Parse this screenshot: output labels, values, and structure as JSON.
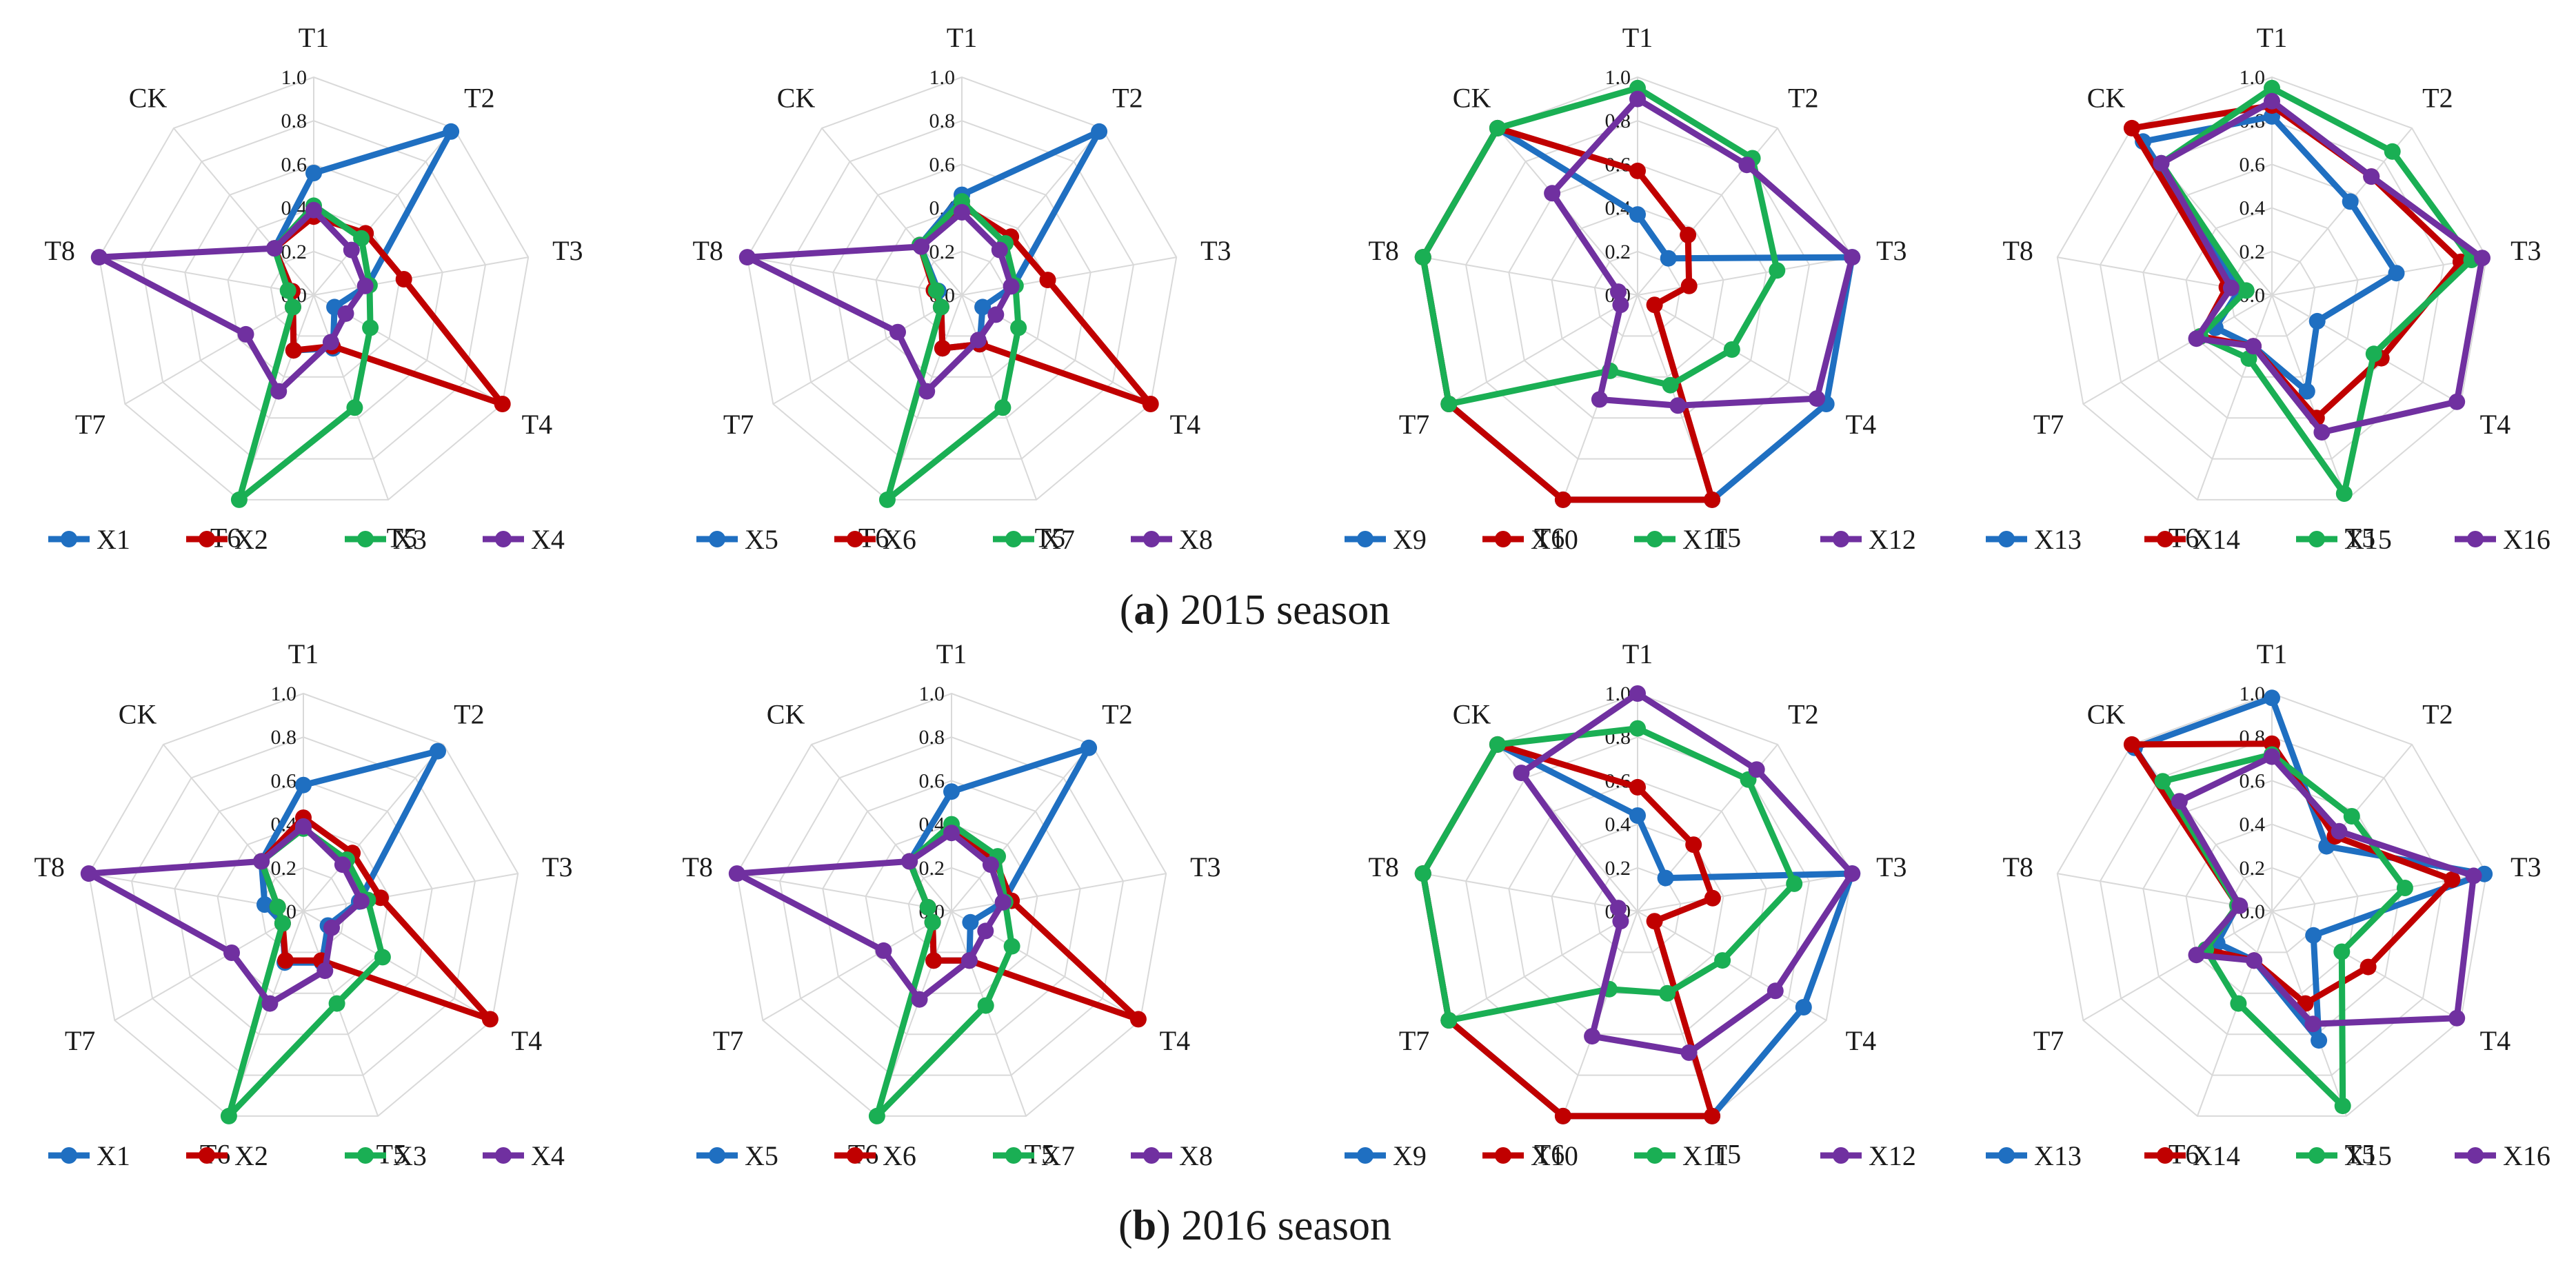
{
  "colors": {
    "s1": "#1f6fc1",
    "s2": "#c00000",
    "s3": "#1aaf54",
    "s4": "#7030a0"
  },
  "chart_data": [
    {
      "type": "radar",
      "axes": [
        "T1",
        "T2",
        "T3",
        "T4",
        "T5",
        "T6",
        "T7",
        "T8",
        "CK"
      ],
      "rlim": [
        0,
        1
      ],
      "ticks": [
        "0.0",
        "0.2",
        "0.4",
        "0.6",
        "0.8",
        "1.0"
      ],
      "series": [
        {
          "name": "X1",
          "values": [
            0.56,
            0.98,
            0.25,
            0.11,
            0.26,
            0.27,
            0.11,
            0.1,
            0.28
          ]
        },
        {
          "name": "X2",
          "values": [
            0.36,
            0.37,
            0.42,
            1.0,
            0.25,
            0.27,
            0.11,
            0.1,
            0.28
          ]
        },
        {
          "name": "X3",
          "values": [
            0.41,
            0.34,
            0.26,
            0.3,
            0.55,
            1.0,
            0.11,
            0.12,
            0.28
          ]
        },
        {
          "name": "X4",
          "values": [
            0.39,
            0.27,
            0.24,
            0.17,
            0.23,
            0.47,
            0.36,
            1.0,
            0.28
          ]
        }
      ]
    },
    {
      "type": "radar",
      "axes": [
        "T1",
        "T2",
        "T3",
        "T4",
        "T5",
        "T6",
        "T7",
        "T8",
        "CK"
      ],
      "rlim": [
        0,
        1
      ],
      "ticks": [
        "0.0",
        "0.2",
        "0.4",
        "0.6",
        "0.8",
        "1.0"
      ],
      "series": [
        {
          "name": "X5",
          "values": [
            0.46,
            0.98,
            0.24,
            0.11,
            0.24,
            0.26,
            0.11,
            0.11,
            0.3
          ]
        },
        {
          "name": "X6",
          "values": [
            0.41,
            0.35,
            0.4,
            1.0,
            0.24,
            0.26,
            0.11,
            0.13,
            0.3
          ]
        },
        {
          "name": "X7",
          "values": [
            0.43,
            0.31,
            0.25,
            0.3,
            0.55,
            1.0,
            0.11,
            0.12,
            0.3
          ]
        },
        {
          "name": "X8",
          "values": [
            0.38,
            0.27,
            0.23,
            0.18,
            0.22,
            0.47,
            0.34,
            1.0,
            0.29
          ]
        }
      ]
    },
    {
      "type": "radar",
      "axes": [
        "T1",
        "T2",
        "T3",
        "T4",
        "T5",
        "T6",
        "T7",
        "T8",
        "CK"
      ],
      "rlim": [
        0,
        1
      ],
      "ticks": [
        "0.0",
        "0.2",
        "0.4",
        "0.6",
        "0.8",
        "1.0"
      ],
      "series": [
        {
          "name": "X9",
          "values": [
            0.37,
            0.22,
            1.0,
            1.0,
            1.0,
            1.0,
            1.0,
            1.0,
            1.0
          ]
        },
        {
          "name": "X10",
          "values": [
            0.57,
            0.36,
            0.24,
            0.09,
            1.0,
            1.0,
            1.0,
            1.0,
            1.0
          ]
        },
        {
          "name": "X11",
          "values": [
            0.95,
            0.82,
            0.65,
            0.5,
            0.44,
            0.37,
            1.0,
            1.0,
            1.0
          ]
        },
        {
          "name": "X12",
          "values": [
            0.9,
            0.78,
            1.0,
            0.95,
            0.54,
            0.51,
            0.09,
            0.09,
            0.61
          ]
        }
      ]
    },
    {
      "type": "radar",
      "axes": [
        "T1",
        "T2",
        "T3",
        "T4",
        "T5",
        "T6",
        "T7",
        "T8",
        "CK"
      ],
      "rlim": [
        0,
        1
      ],
      "ticks": [
        "0.0",
        "0.2",
        "0.4",
        "0.6",
        "0.8",
        "1.0"
      ],
      "series": [
        {
          "name": "X13",
          "values": [
            0.82,
            0.56,
            0.58,
            0.24,
            0.47,
            0.25,
            0.3,
            0.15,
            0.92
          ]
        },
        {
          "name": "X14",
          "values": [
            0.87,
            0.71,
            0.88,
            0.58,
            0.6,
            0.25,
            0.38,
            0.21,
            1.0
          ]
        },
        {
          "name": "X15",
          "values": [
            0.95,
            0.86,
            0.93,
            0.54,
            0.97,
            0.31,
            0.38,
            0.12,
            0.79
          ]
        },
        {
          "name": "X16",
          "values": [
            0.89,
            0.71,
            0.98,
            0.98,
            0.67,
            0.25,
            0.4,
            0.19,
            0.79
          ]
        }
      ]
    },
    {
      "type": "radar",
      "axes": [
        "T1",
        "T2",
        "T3",
        "T4",
        "T5",
        "T6",
        "T7",
        "T8",
        "CK"
      ],
      "rlim": [
        0,
        1
      ],
      "ticks": [
        "0.0",
        "0.2",
        "0.4",
        "0.6",
        "0.8",
        "1.0"
      ],
      "series": [
        {
          "name": "X1",
          "values": [
            0.58,
            0.96,
            0.26,
            0.13,
            0.25,
            0.25,
            0.11,
            0.18,
            0.3
          ]
        },
        {
          "name": "X2",
          "values": [
            0.43,
            0.35,
            0.36,
            0.99,
            0.24,
            0.24,
            0.11,
            0.12,
            0.3
          ]
        },
        {
          "name": "X3",
          "values": [
            0.38,
            0.31,
            0.3,
            0.42,
            0.45,
            1.0,
            0.11,
            0.12,
            0.3
          ]
        },
        {
          "name": "X4",
          "values": [
            0.39,
            0.28,
            0.27,
            0.15,
            0.29,
            0.45,
            0.38,
            1.0,
            0.3
          ]
        }
      ]
    },
    {
      "type": "radar",
      "axes": [
        "T1",
        "T2",
        "T3",
        "T4",
        "T5",
        "T6",
        "T7",
        "T8",
        "CK"
      ],
      "rlim": [
        0,
        1
      ],
      "ticks": [
        "0.0",
        "0.2",
        "0.4",
        "0.6",
        "0.8",
        "1.0"
      ],
      "series": [
        {
          "name": "X5",
          "values": [
            0.55,
            0.98,
            0.24,
            0.1,
            0.24,
            0.24,
            0.1,
            0.11,
            0.3
          ]
        },
        {
          "name": "X6",
          "values": [
            0.38,
            0.31,
            0.28,
            0.99,
            0.24,
            0.24,
            0.1,
            0.11,
            0.3
          ]
        },
        {
          "name": "X7",
          "values": [
            0.4,
            0.33,
            0.25,
            0.32,
            0.46,
            1.0,
            0.1,
            0.11,
            0.3
          ]
        },
        {
          "name": "X8",
          "values": [
            0.36,
            0.28,
            0.24,
            0.18,
            0.24,
            0.43,
            0.36,
            1.0,
            0.3
          ]
        }
      ]
    },
    {
      "type": "radar",
      "axes": [
        "T1",
        "T2",
        "T3",
        "T4",
        "T5",
        "T6",
        "T7",
        "T8",
        "CK"
      ],
      "rlim": [
        0,
        1
      ],
      "ticks": [
        "0.0",
        "0.2",
        "0.4",
        "0.6",
        "0.8",
        "1.0"
      ],
      "series": [
        {
          "name": "X9",
          "values": [
            0.44,
            0.2,
            1.0,
            0.88,
            1.0,
            1.0,
            1.0,
            1.0,
            1.0
          ]
        },
        {
          "name": "X10",
          "values": [
            0.57,
            0.4,
            0.35,
            0.09,
            1.0,
            1.0,
            1.0,
            1.0,
            1.0
          ]
        },
        {
          "name": "X11",
          "values": [
            0.84,
            0.79,
            0.73,
            0.45,
            0.4,
            0.38,
            1.0,
            1.0,
            1.0
          ]
        },
        {
          "name": "X12",
          "values": [
            1.0,
            0.85,
            1.0,
            0.73,
            0.69,
            0.61,
            0.09,
            0.09,
            0.83
          ]
        }
      ]
    },
    {
      "type": "radar",
      "axes": [
        "T1",
        "T2",
        "T3",
        "T4",
        "T5",
        "T6",
        "T7",
        "T8",
        "CK"
      ],
      "rlim": [
        0,
        1
      ],
      "ticks": [
        "0.0",
        "0.2",
        "0.4",
        "0.6",
        "0.8",
        "1.0"
      ],
      "series": [
        {
          "name": "X13",
          "values": [
            0.98,
            0.39,
            0.99,
            0.22,
            0.63,
            0.24,
            0.29,
            0.16,
            0.98
          ]
        },
        {
          "name": "X14",
          "values": [
            0.77,
            0.45,
            0.84,
            0.51,
            0.45,
            0.24,
            0.35,
            0.16,
            1.0
          ]
        },
        {
          "name": "X15",
          "values": [
            0.72,
            0.57,
            0.62,
            0.37,
            0.95,
            0.45,
            0.35,
            0.16,
            0.78
          ]
        },
        {
          "name": "X16",
          "values": [
            0.71,
            0.48,
            0.94,
            0.98,
            0.55,
            0.24,
            0.4,
            0.15,
            0.66
          ]
        }
      ]
    }
  ],
  "captions": {
    "a": {
      "letter": "a",
      "text": " 2015 season"
    },
    "b": {
      "letter": "b",
      "text": " 2016 season"
    }
  }
}
